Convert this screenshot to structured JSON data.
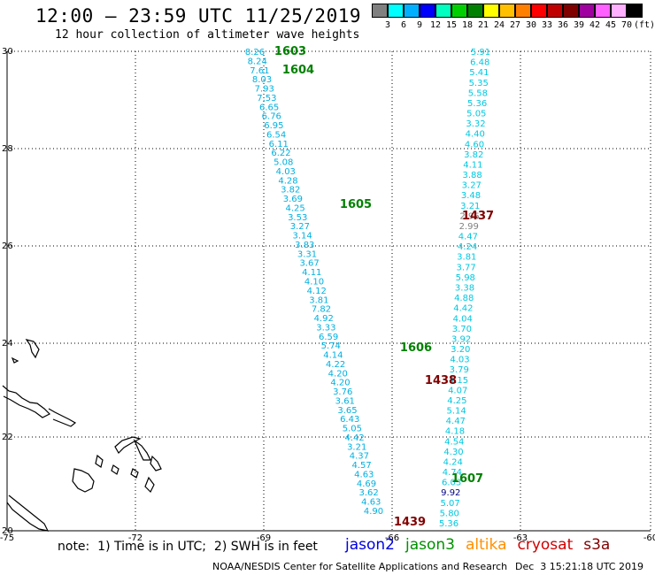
{
  "title": "12:00 – 23:59 UTC 11/25/2019",
  "subtitle": "12 hour collection of altimeter wave heights",
  "scale": {
    "labels": [
      "3",
      "6",
      "9",
      "12",
      "15",
      "18",
      "21",
      "24",
      "27",
      "30",
      "33",
      "36",
      "39",
      "42",
      "45",
      "70",
      "(ft)"
    ],
    "colors": [
      "#808080",
      "#00ffff",
      "#00b0ff",
      "#0000ff",
      "#00ffc0",
      "#00d000",
      "#008000",
      "#ffff00",
      "#ffc000",
      "#ff8000",
      "#ff0000",
      "#c00000",
      "#800000",
      "#a000a0",
      "#ff60ff",
      "#ffb0ff",
      "#000000"
    ]
  },
  "axes": {
    "lat_labels": [
      "30",
      "28",
      "26",
      "24",
      "22",
      "20"
    ],
    "lon_labels": [
      "-75",
      "-72",
      "-69",
      "-66",
      "-63",
      "-60"
    ]
  },
  "note": "note:  1) Time is in UTC;  2) SWH is in feet",
  "missions": [
    {
      "name": "jason2",
      "color": "#0000e0"
    },
    {
      "name": "jason3",
      "color": "#009000"
    },
    {
      "name": "altika",
      "color": "#ff9000"
    },
    {
      "name": "cryosat",
      "color": "#d00000"
    },
    {
      "name": "s3a",
      "color": "#800000"
    }
  ],
  "credit": "NOAA/NESDIS Center for Satellite Applications and Research",
  "stamp": "Dec  3 15:21:18 UTC 2019",
  "track_labels": [
    {
      "text": "1603",
      "color": "#008000"
    },
    {
      "text": "1604",
      "color": "#008000"
    },
    {
      "text": "1605",
      "color": "#008000"
    },
    {
      "text": "1606",
      "color": "#008000"
    },
    {
      "text": "1607",
      "color": "#008000"
    },
    {
      "text": "1437",
      "color": "#800000"
    },
    {
      "text": "1438",
      "color": "#800000"
    },
    {
      "text": "1439",
      "color": "#800000"
    }
  ],
  "track_a": {
    "color": "#00b0e0",
    "values": [
      "8.26",
      "8.24",
      "7.61",
      "8.03",
      "7.93",
      "7.53",
      "6.65",
      "6.76",
      "6.95",
      "6.54",
      "6.11",
      "6.22",
      "5.08",
      "4.03",
      "4.28",
      "3.82",
      "3.69",
      "4.25",
      "3.53",
      "3.27",
      "3.14",
      "3.83",
      "3.31",
      "3.67",
      "4.11",
      "4.10",
      "4.12",
      "3.81",
      "7.82",
      "4.92",
      "3.33",
      "6.59",
      "5.74",
      "4.14",
      "4.22",
      "4.20",
      "4.20",
      "3.76",
      "3.61",
      "3.65",
      "6.43",
      "5.05",
      "4.42",
      "3.21",
      "4.37",
      "4.57",
      "4.63",
      "4.69",
      "3.62",
      "4.63",
      "4.90"
    ]
  },
  "track_b": {
    "color": "#00c8e0",
    "values": [
      "5.91",
      "6.48",
      "5.41",
      "5.35",
      "5.58",
      "5.36",
      "5.05",
      "3.32",
      "4.40",
      "4.60",
      "3.82",
      "4.11",
      "3.88",
      "3.27",
      "3.48",
      "3.21",
      "2.96",
      "2.99",
      "4.47",
      "4.24",
      "3.81",
      "3.77",
      "5.98",
      "3.38",
      "4.88",
      "4.42",
      "4.04",
      "3.70",
      "3.92",
      "3.20",
      "4.03",
      "3.79",
      "4.15",
      "4.07",
      "4.25",
      "5.14",
      "4.47",
      "4.18",
      "4.54",
      "4.30",
      "4.24",
      "4.74",
      "6.03",
      "9.92",
      "5.07",
      "5.80",
      "5.36"
    ]
  }
}
